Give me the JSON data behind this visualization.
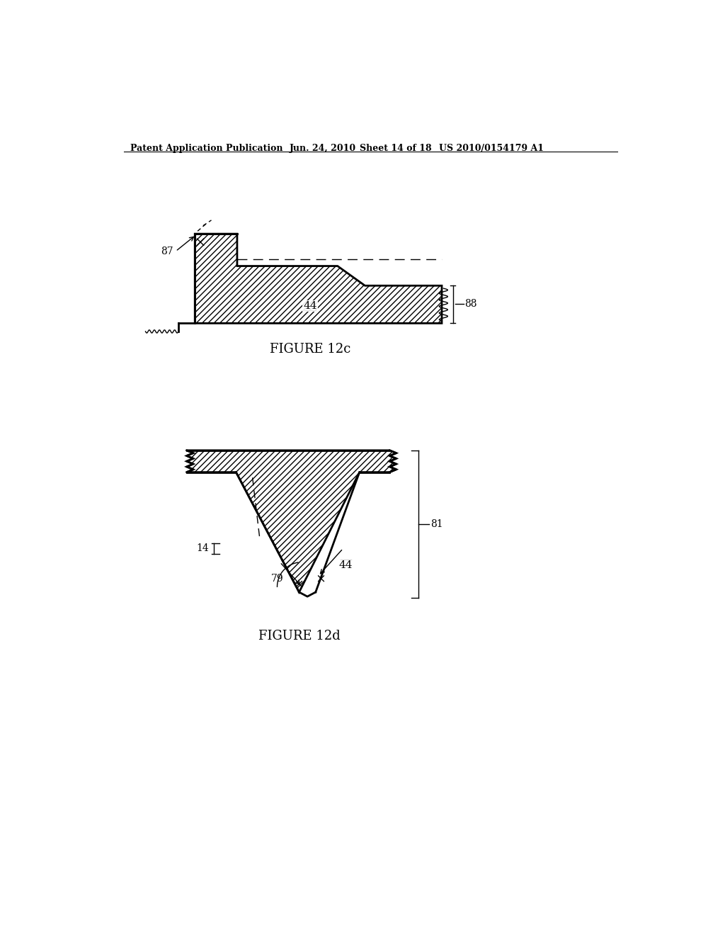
{
  "bg_color": "#ffffff",
  "header_text": "Patent Application Publication",
  "header_date": "Jun. 24, 2010",
  "header_sheet": "Sheet 14 of 18",
  "header_patent": "US 2010/0154179 A1",
  "fig12c_label": "FIGURE 12c",
  "fig12d_label": "FIGURE 12d",
  "label_87": "87",
  "label_88": "88",
  "label_44_top": "44",
  "label_44_bot": "44",
  "label_79": "79",
  "label_81": "81",
  "label_14": "14"
}
